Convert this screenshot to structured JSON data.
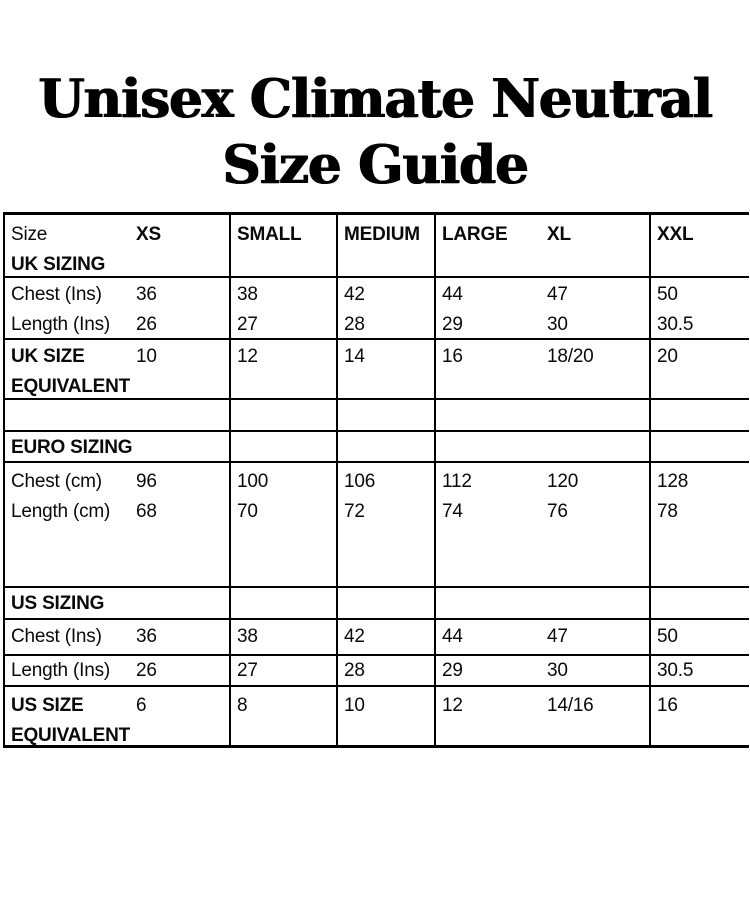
{
  "colors": {
    "ink": "#000000",
    "background": "#ffffff"
  },
  "title": {
    "line1": "Unisex Climate Neutral",
    "line2": "Size Guide"
  },
  "header": {
    "size": "Size",
    "xs": "XS",
    "small": "SMALL",
    "medium": "MEDIUM",
    "large": "LARGE",
    "xl": "XL",
    "xxl": "XXL",
    "uk_sizing": "UK SIZING"
  },
  "uk": {
    "chest": {
      "label": "Chest (Ins)",
      "xs": "36",
      "small": "38",
      "medium": "42",
      "large": "44",
      "xl": "47",
      "xxl": "50"
    },
    "length": {
      "label": "Length (Ins)",
      "xs": "26",
      "small": "27",
      "medium": "28",
      "large": "29",
      "xl": "30",
      "xxl": "30.5"
    },
    "equivalent": {
      "label_line1": "UK SIZE",
      "label_line2": "EQUIVALENT",
      "xs": "10",
      "small": "12",
      "medium": "14",
      "large": "16",
      "xl": "18/20",
      "xxl": "20"
    }
  },
  "euro": {
    "section_label": "EURO SIZING",
    "chest": {
      "label": "Chest (cm)",
      "xs": "96",
      "small": "100",
      "medium": "106",
      "large": "112",
      "xl": "120",
      "xxl": "128"
    },
    "length": {
      "label": "Length (cm)",
      "xs": "68",
      "small": "70",
      "medium": "72",
      "large": "74",
      "xl": "76",
      "xxl": "78"
    }
  },
  "us": {
    "section_label": "US SIZING",
    "chest": {
      "label": "Chest (Ins)",
      "xs": "36",
      "small": "38",
      "medium": "42",
      "large": "44",
      "xl": "47",
      "xxl": "50"
    },
    "length": {
      "label": "Length (Ins)",
      "xs": "26",
      "small": "27",
      "medium": "28",
      "large": "29",
      "xl": "30",
      "xxl": "30.5"
    },
    "equivalent": {
      "label_line1": "US SIZE",
      "label_line2": "EQUIVALENT",
      "xs": "6",
      "small": "8",
      "medium": "10",
      "large": "12",
      "xl": "14/16",
      "xxl": "16"
    }
  }
}
